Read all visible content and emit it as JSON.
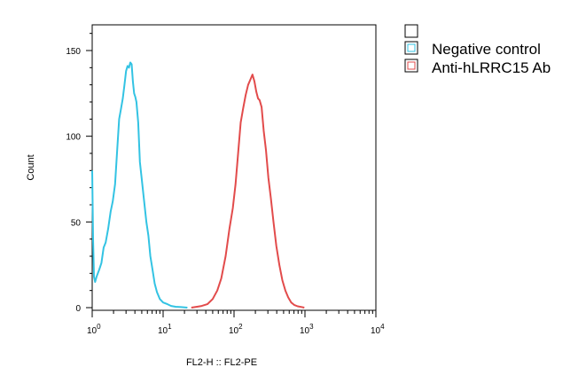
{
  "chart_data": {
    "type": "line",
    "xlabel": "FL2-H :: FL2-PE",
    "ylabel": "Count",
    "xscale": "log",
    "xlim": [
      1,
      10000
    ],
    "ylim": [
      0,
      165
    ],
    "x_ticks": [
      {
        "base": "10",
        "exp": "0",
        "value": 1
      },
      {
        "base": "10",
        "exp": "1",
        "value": 10
      },
      {
        "base": "10",
        "exp": "2",
        "value": 100
      },
      {
        "base": "10",
        "exp": "3",
        "value": 1000
      },
      {
        "base": "10",
        "exp": "4",
        "value": 10000
      }
    ],
    "y_ticks": [
      {
        "label": "0",
        "value": 0
      },
      {
        "label": "50",
        "value": 50
      },
      {
        "label": "100",
        "value": 100
      },
      {
        "label": "150",
        "value": 150
      }
    ],
    "legend_position": "outside-top-right",
    "legend_blank_entry": true,
    "grid": false,
    "series": [
      {
        "name": "Negative control",
        "color": "#33c3e3",
        "points": [
          [
            1.0,
            80
          ],
          [
            1.03,
            40
          ],
          [
            1.06,
            18
          ],
          [
            1.1,
            15
          ],
          [
            1.15,
            18
          ],
          [
            1.25,
            22
          ],
          [
            1.35,
            26
          ],
          [
            1.45,
            35
          ],
          [
            1.55,
            38
          ],
          [
            1.68,
            46
          ],
          [
            1.82,
            56
          ],
          [
            1.95,
            62
          ],
          [
            2.1,
            72
          ],
          [
            2.25,
            92
          ],
          [
            2.4,
            110
          ],
          [
            2.55,
            116
          ],
          [
            2.7,
            122
          ],
          [
            2.85,
            130
          ],
          [
            3.0,
            138
          ],
          [
            3.15,
            141
          ],
          [
            3.3,
            140
          ],
          [
            3.45,
            143
          ],
          [
            3.6,
            142
          ],
          [
            3.75,
            132
          ],
          [
            3.9,
            125
          ],
          [
            4.05,
            123
          ],
          [
            4.2,
            120
          ],
          [
            4.45,
            108
          ],
          [
            4.7,
            85
          ],
          [
            5.0,
            75
          ],
          [
            5.4,
            62
          ],
          [
            5.8,
            50
          ],
          [
            6.2,
            42
          ],
          [
            6.6,
            30
          ],
          [
            7.1,
            22
          ],
          [
            7.6,
            14
          ],
          [
            8.2,
            9
          ],
          [
            9.0,
            5
          ],
          [
            10.0,
            3
          ],
          [
            11.5,
            2
          ],
          [
            13.0,
            1
          ],
          [
            15.0,
            0.5
          ],
          [
            18.0,
            0.3
          ],
          [
            22.0,
            0
          ]
        ]
      },
      {
        "name": "Anti-hLRRC15 Ab",
        "color": "#e24b4b",
        "points": [
          [
            25,
            0
          ],
          [
            30,
            0.5
          ],
          [
            35,
            1
          ],
          [
            42,
            2
          ],
          [
            50,
            5
          ],
          [
            58,
            10
          ],
          [
            66,
            17
          ],
          [
            76,
            30
          ],
          [
            86,
            46
          ],
          [
            96,
            58
          ],
          [
            105,
            72
          ],
          [
            114,
            90
          ],
          [
            124,
            108
          ],
          [
            134,
            116
          ],
          [
            146,
            124
          ],
          [
            158,
            130
          ],
          [
            170,
            133
          ],
          [
            182,
            136
          ],
          [
            194,
            132
          ],
          [
            206,
            126
          ],
          [
            218,
            122
          ],
          [
            230,
            121
          ],
          [
            245,
            117
          ],
          [
            262,
            103
          ],
          [
            282,
            92
          ],
          [
            305,
            76
          ],
          [
            330,
            64
          ],
          [
            360,
            50
          ],
          [
            395,
            36
          ],
          [
            435,
            25
          ],
          [
            480,
            16
          ],
          [
            530,
            10
          ],
          [
            580,
            6
          ],
          [
            640,
            3
          ],
          [
            710,
            1.5
          ],
          [
            790,
            0.8
          ],
          [
            880,
            0.4
          ],
          [
            980,
            0
          ]
        ]
      }
    ]
  }
}
